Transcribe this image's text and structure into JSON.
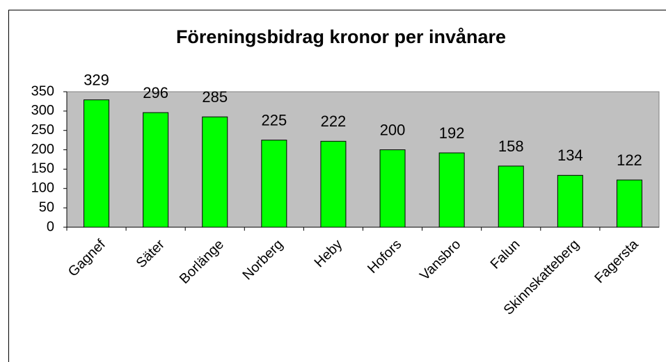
{
  "chart_data": {
    "type": "bar",
    "title": "Föreningsbidrag kronor per invånare",
    "categories": [
      "Gagnef",
      "Säter",
      "Borlänge",
      "Norberg",
      "Heby",
      "Hofors",
      "Vansbro",
      "Falun",
      "Skinnskatteberg",
      "Fagersta"
    ],
    "values": [
      329,
      296,
      285,
      225,
      222,
      200,
      192,
      158,
      134,
      122
    ],
    "color": "#00ff00",
    "plot_background": "#c0c0c0",
    "ylim": [
      0,
      350
    ],
    "yticks": [
      0,
      50,
      100,
      150,
      200,
      250,
      300,
      350
    ],
    "grid": false
  }
}
